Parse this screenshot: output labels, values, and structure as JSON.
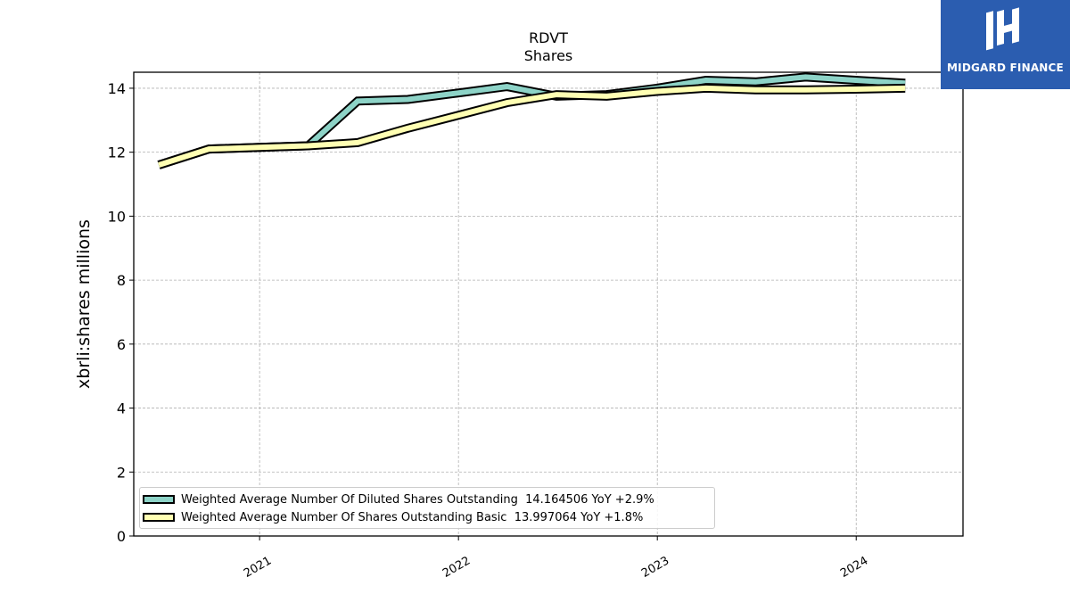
{
  "chart_data": {
    "type": "line",
    "title": "RDVT",
    "subtitle": "Shares",
    "xlabel": "",
    "ylabel": "xbrli:shares millions",
    "xlim": [
      "2020-05-15",
      "2024-07-15"
    ],
    "ylim": [
      0,
      14.5
    ],
    "yticks": [
      0,
      2,
      4,
      6,
      8,
      10,
      12,
      14
    ],
    "xticks": [
      {
        "date": "2021-01-01",
        "label": "2021"
      },
      {
        "date": "2022-01-01",
        "label": "2022"
      },
      {
        "date": "2023-01-01",
        "label": "2023"
      },
      {
        "date": "2024-01-01",
        "label": "2024"
      }
    ],
    "grid": true,
    "legend_position": "lower-left",
    "series": [
      {
        "name": "Weighted Average Number Of Diluted Shares Outstanding",
        "legend_label": "Weighted Average Number Of Diluted Shares Outstanding  14.164506 YoY +2.9%",
        "color": "#8dd3c7",
        "x": [
          "2020-06-30",
          "2020-09-30",
          "2020-12-31",
          "2021-03-31",
          "2021-06-30",
          "2021-09-30",
          "2021-12-31",
          "2022-03-31",
          "2022-06-30",
          "2022-09-30",
          "2022-12-31",
          "2023-03-31",
          "2023-06-30",
          "2023-09-30",
          "2023-12-31",
          "2024-03-31"
        ],
        "values": [
          11.6,
          12.1,
          12.15,
          12.2,
          13.6,
          13.65,
          13.85,
          14.05,
          13.75,
          13.8,
          14.0,
          14.25,
          14.2,
          14.35,
          14.25,
          14.16
        ]
      },
      {
        "name": "Weighted Average Number Of Shares Outstanding Basic",
        "legend_label": "Weighted Average Number Of Shares Outstanding Basic  13.997064 YoY +1.8%",
        "color": "#ffffb3",
        "x": [
          "2020-06-30",
          "2020-09-30",
          "2020-12-31",
          "2021-03-31",
          "2021-06-30",
          "2021-09-30",
          "2021-12-31",
          "2022-03-31",
          "2022-06-30",
          "2022-09-30",
          "2022-12-31",
          "2023-03-31",
          "2023-06-30",
          "2023-09-30",
          "2023-12-31",
          "2024-03-31"
        ],
        "values": [
          11.6,
          12.1,
          12.15,
          12.2,
          12.3,
          12.75,
          13.15,
          13.55,
          13.8,
          13.75,
          13.9,
          14.0,
          13.95,
          13.95,
          13.97,
          14.0
        ]
      }
    ]
  },
  "logo": {
    "text": "MIDGARD FINANCE"
  }
}
